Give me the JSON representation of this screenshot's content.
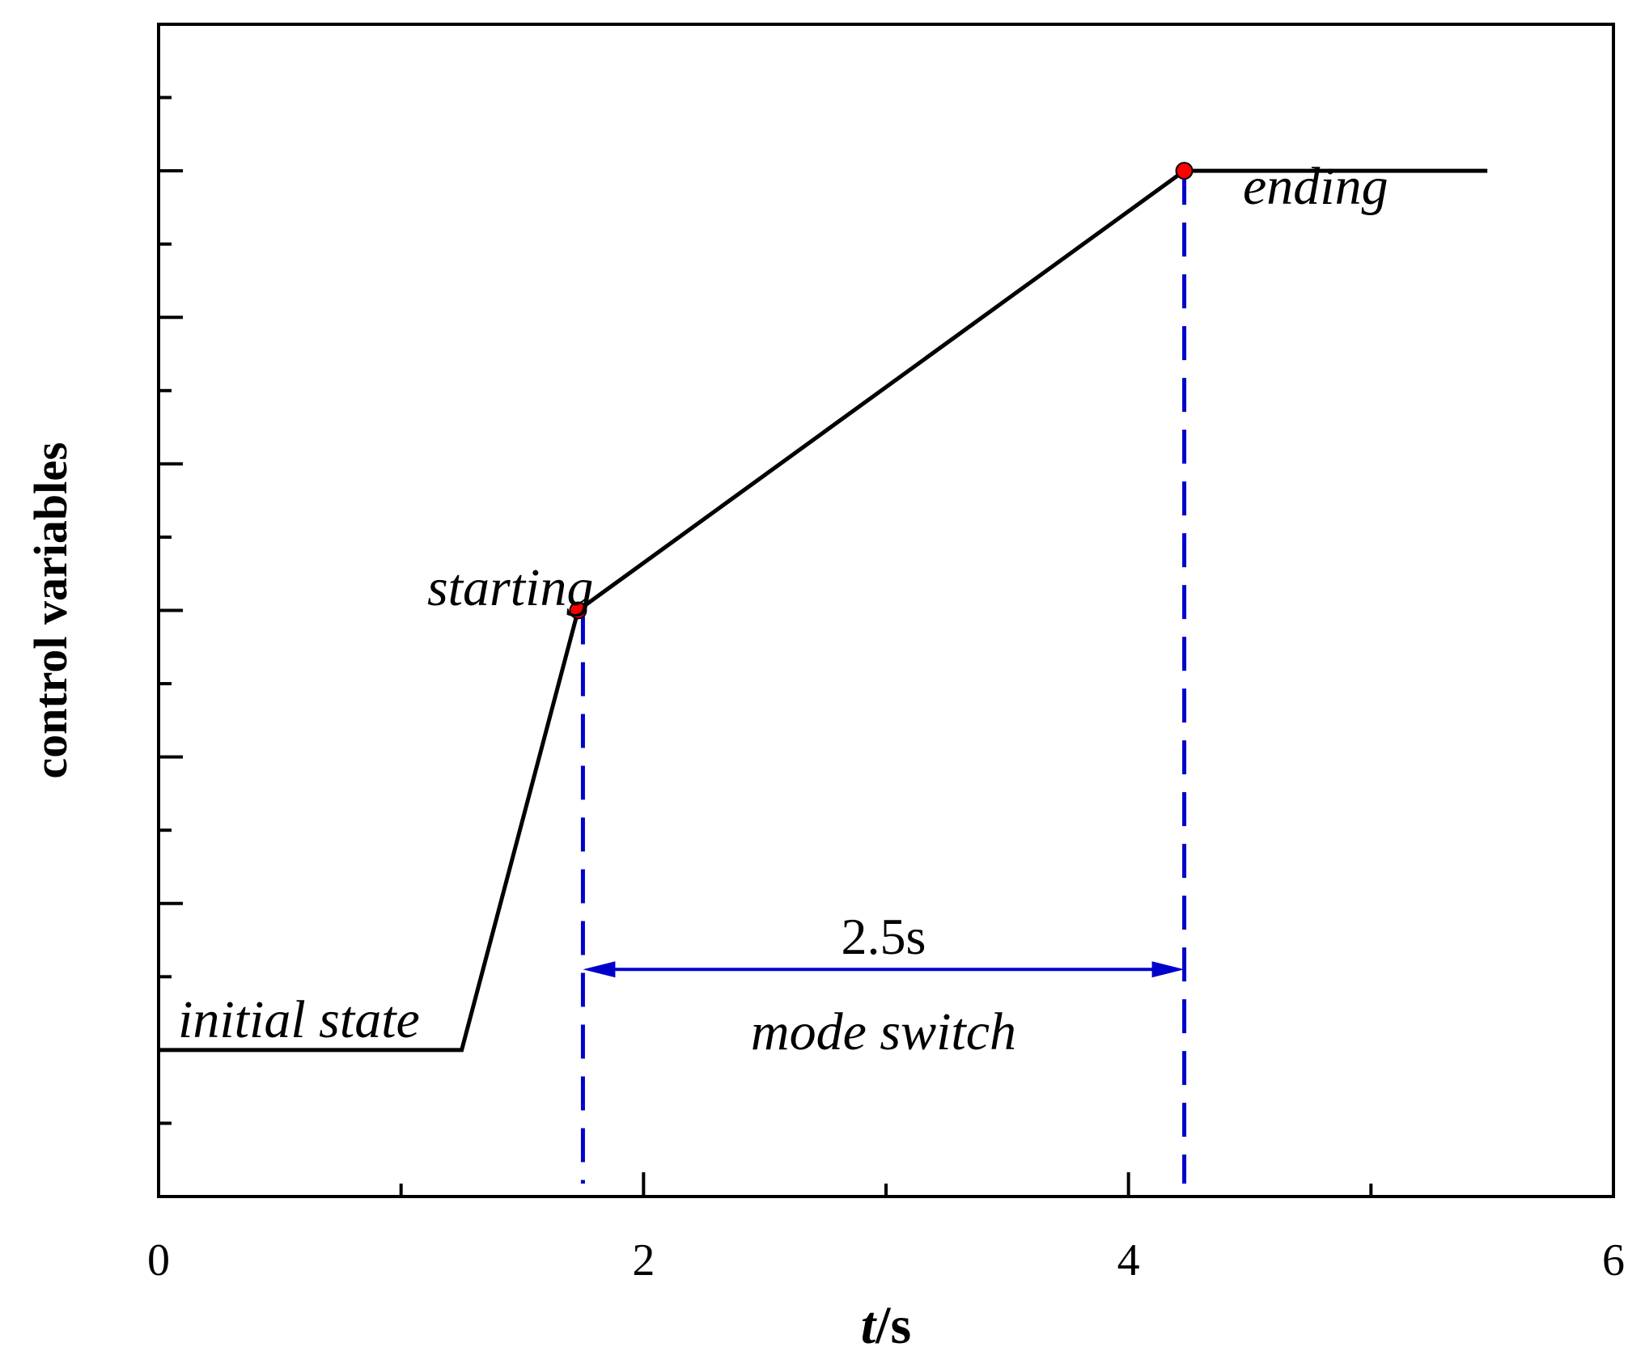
{
  "chart_data": {
    "type": "line",
    "xlabel_italic": "t",
    "xlabel_rest": "/s",
    "ylabel": "control variables",
    "xlim": [
      0,
      6
    ],
    "ylim": [
      0,
      8
    ],
    "x_ticks_major": [
      0,
      2,
      4,
      6
    ],
    "x_tick_labels": [
      "0",
      "2",
      "4",
      "6"
    ],
    "x_ticks_minor": [
      1,
      3,
      5
    ],
    "y_ticks_major": [
      1,
      2,
      3,
      4,
      5,
      6,
      7
    ],
    "y_ticks_minor": [
      0.5,
      1.5,
      2.5,
      3.5,
      4.5,
      5.5,
      6.5,
      7.5
    ],
    "series": [
      {
        "x": [
          0,
          1.25,
          1.73,
          4.23,
          5.48
        ],
        "y": [
          1,
          1,
          4,
          7,
          7
        ],
        "color": "#000000"
      }
    ],
    "markers": [
      {
        "x": 1.73,
        "y": 4,
        "color": "#ff0000"
      },
      {
        "x": 4.23,
        "y": 7,
        "color": "#ff0000"
      }
    ],
    "vertical_dashed_lines": [
      {
        "x": 1.75,
        "y_top": 4,
        "color": "#0000cc"
      },
      {
        "x": 4.23,
        "y_top": 7,
        "color": "#0000cc"
      }
    ],
    "span_arrow": {
      "x1": 1.75,
      "x2": 4.23,
      "y": 1.55,
      "color": "#0000cc"
    },
    "annotations": {
      "initial": "initial state",
      "starting": "starting",
      "ending": "ending",
      "duration": "2.5s",
      "mode": "mode switch"
    }
  }
}
